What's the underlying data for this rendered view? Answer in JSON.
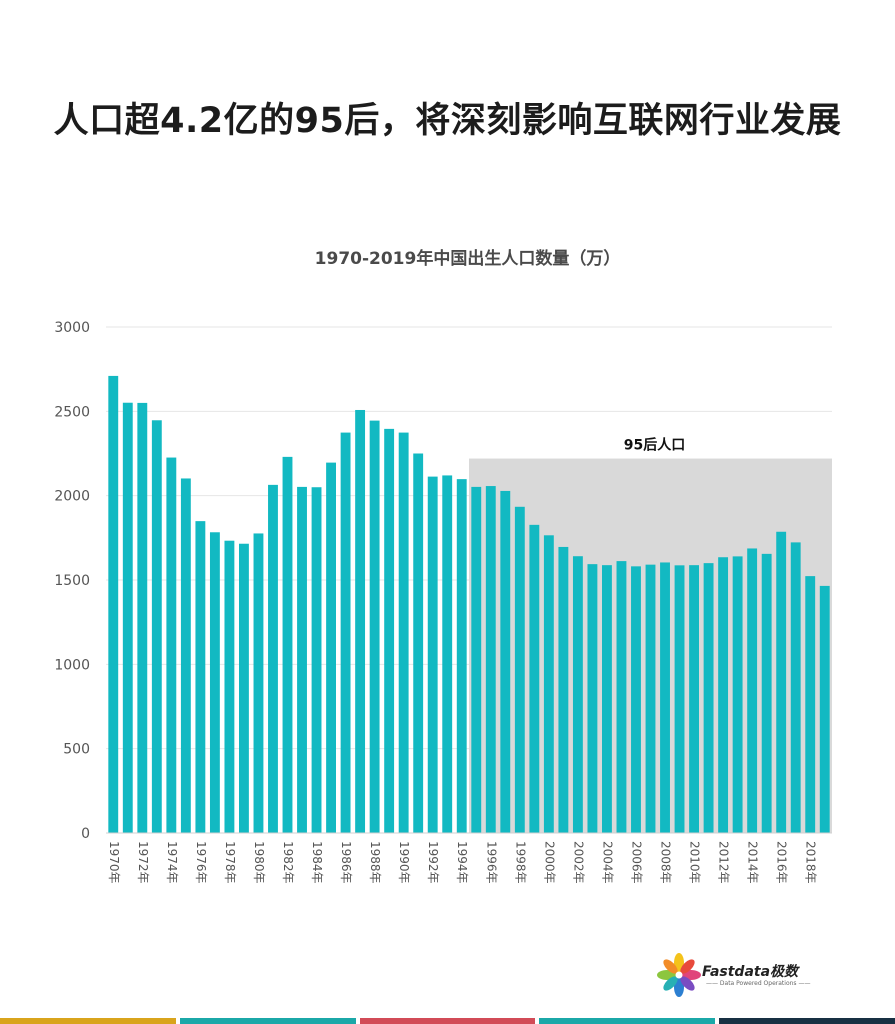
{
  "page": {
    "title": "人口超4.2亿的95后，将深刻影响互联网行业发展"
  },
  "chart_data": {
    "type": "bar",
    "title": "1970-2019年中国出生人口数量（万）",
    "categories": [
      "1970年",
      "1971年",
      "1972年",
      "1973年",
      "1974年",
      "1975年",
      "1976年",
      "1977年",
      "1978年",
      "1979年",
      "1980年",
      "1981年",
      "1982年",
      "1983年",
      "1984年",
      "1985年",
      "1986年",
      "1987年",
      "1988年",
      "1989年",
      "1990年",
      "1991年",
      "1992年",
      "1993年",
      "1994年",
      "1995年",
      "1996年",
      "1997年",
      "1998年",
      "1999年",
      "2000年",
      "2001年",
      "2002年",
      "2003年",
      "2004年",
      "2005年",
      "2006年",
      "2007年",
      "2008年",
      "2009年",
      "2010年",
      "2011年",
      "2012年",
      "2013年",
      "2014年",
      "2015年",
      "2016年",
      "2017年",
      "2018年",
      "2019年"
    ],
    "xtick_labels": [
      "1970年",
      "1972年",
      "1974年",
      "1976年",
      "1978年",
      "1980年",
      "1982年",
      "1984年",
      "1986年",
      "1988年",
      "1990年",
      "1992年",
      "1994年",
      "1996年",
      "1998年",
      "2000年",
      "2002年",
      "2004年",
      "2006年",
      "2008年",
      "2010年",
      "2012年",
      "2014年",
      "2016年",
      "2018年"
    ],
    "values": [
      2710,
      2551,
      2550,
      2447,
      2226,
      2102,
      1849,
      1783,
      1733,
      1715,
      1776,
      2064,
      2230,
      2052,
      2050,
      2196,
      2374,
      2508,
      2445,
      2396,
      2374,
      2250,
      2113,
      2120,
      2098,
      2052,
      2057,
      2028,
      1934,
      1827,
      1765,
      1696,
      1641,
      1594,
      1588,
      1612,
      1581,
      1591,
      1604,
      1587,
      1588,
      1600,
      1635,
      1640,
      1687,
      1655,
      1786,
      1723,
      1523,
      1465
    ],
    "ylim": [
      0,
      3000
    ],
    "yticks": [
      0,
      500,
      1000,
      1500,
      2000,
      2500,
      3000
    ],
    "grid": true,
    "bar_color": "#12b9c2",
    "highlight": {
      "label": "95后人口",
      "from_category": "1995年",
      "to_category": "2019年",
      "y_top": 2220,
      "color": "#d9d9d9"
    }
  },
  "logo": {
    "brand": "Fastdata极数",
    "tagline": "—— Data Powered Operations ——"
  },
  "colors": {
    "footer_strip": [
      "#d9a41c",
      "#1ba8a8",
      "#d24b57",
      "#1ba8a8",
      "#183043"
    ]
  }
}
